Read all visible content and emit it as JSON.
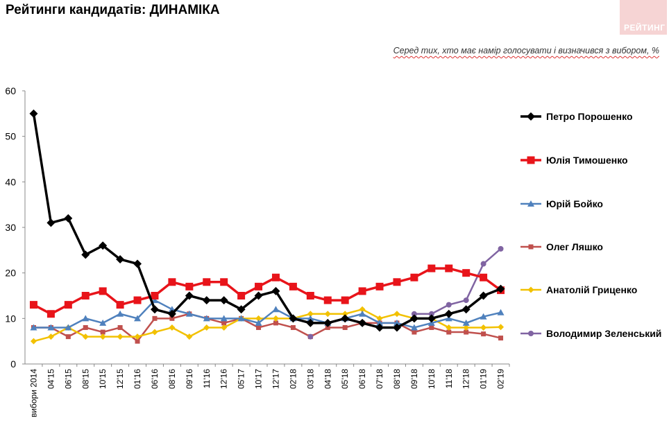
{
  "header": {
    "title": "Рейтинги кандидатів: ДИНАМІКА",
    "subtitle": "Серед тих, хто має намір голосувати і визначився з вибором, %",
    "logo_text": "РЕЙТИНГ"
  },
  "chart_data": {
    "type": "line",
    "title": "Рейтинги кандидатів: ДИНАМІКА",
    "subtitle": "Серед тих, хто має намір голосувати і визначився з вибором, %",
    "xlabel": "",
    "ylabel": "",
    "ylim": [
      0,
      60
    ],
    "yticks": [
      0,
      10,
      20,
      30,
      40,
      50,
      60
    ],
    "grid": false,
    "legend": "right",
    "categories": [
      "вибори 2014",
      "04'15",
      "06'15",
      "08'15",
      "10'15",
      "12'15",
      "01'16",
      "06'16",
      "08'16",
      "09'16",
      "11'16",
      "12'16",
      "05'17",
      "10'17",
      "12'17",
      "02'18",
      "03'18",
      "04'18",
      "05'18",
      "06'18",
      "07'18",
      "08'18",
      "09'18",
      "10'18",
      "11'18",
      "12'18",
      "01'19",
      "02'19"
    ],
    "series": [
      {
        "name": "Петро Порошенко",
        "color": "#000000",
        "marker": "diamond",
        "values": [
          55,
          31,
          32,
          24,
          26,
          23,
          22,
          12,
          11,
          15,
          14,
          14,
          12,
          15,
          16,
          10,
          9,
          9,
          10,
          9,
          8,
          8,
          10,
          10,
          11,
          12,
          15,
          16.5
        ]
      },
      {
        "name": "Юлія Тимошенко",
        "color": "#e8141a",
        "marker": "square",
        "values": [
          13,
          11,
          13,
          15,
          16,
          13,
          14,
          15,
          18,
          17,
          18,
          18,
          15,
          17,
          19,
          17,
          15,
          14,
          14,
          16,
          17,
          18,
          19,
          21,
          21,
          20,
          19,
          16.2
        ]
      },
      {
        "name": "Юрій Бойко",
        "color": "#4f81bd",
        "marker": "triangle",
        "values": [
          8,
          8,
          8,
          10,
          9,
          11,
          10,
          14,
          12,
          11,
          10,
          10,
          10,
          9,
          12,
          10,
          10,
          9,
          10,
          11,
          9,
          9,
          8,
          9,
          10,
          9,
          10.4,
          11.3
        ]
      },
      {
        "name": "Олег Ляшко",
        "color": "#c0504d",
        "marker": "square-small",
        "values": [
          8,
          8,
          6,
          8,
          7,
          8,
          5,
          10,
          10,
          11,
          10,
          9,
          10,
          8,
          9,
          8,
          6,
          8,
          8,
          9,
          9,
          9,
          7,
          8,
          7,
          7,
          6.6,
          5.7
        ]
      },
      {
        "name": "Анатолій Гриценко",
        "color": "#f2c100",
        "marker": "diamond-small",
        "values": [
          5,
          6,
          8,
          6,
          6,
          6,
          6,
          7,
          8,
          6,
          8,
          8,
          10,
          10,
          10,
          10,
          11,
          11,
          11,
          12,
          10,
          11,
          10,
          10,
          8,
          8,
          8,
          8.1
        ]
      },
      {
        "name": "Володимир Зеленський",
        "color": "#8064a2",
        "marker": "circle",
        "values": [
          null,
          null,
          null,
          null,
          null,
          null,
          null,
          null,
          null,
          null,
          null,
          null,
          null,
          null,
          null,
          null,
          6,
          null,
          null,
          null,
          null,
          null,
          11,
          11,
          13,
          14,
          22,
          25.3
        ]
      }
    ]
  }
}
